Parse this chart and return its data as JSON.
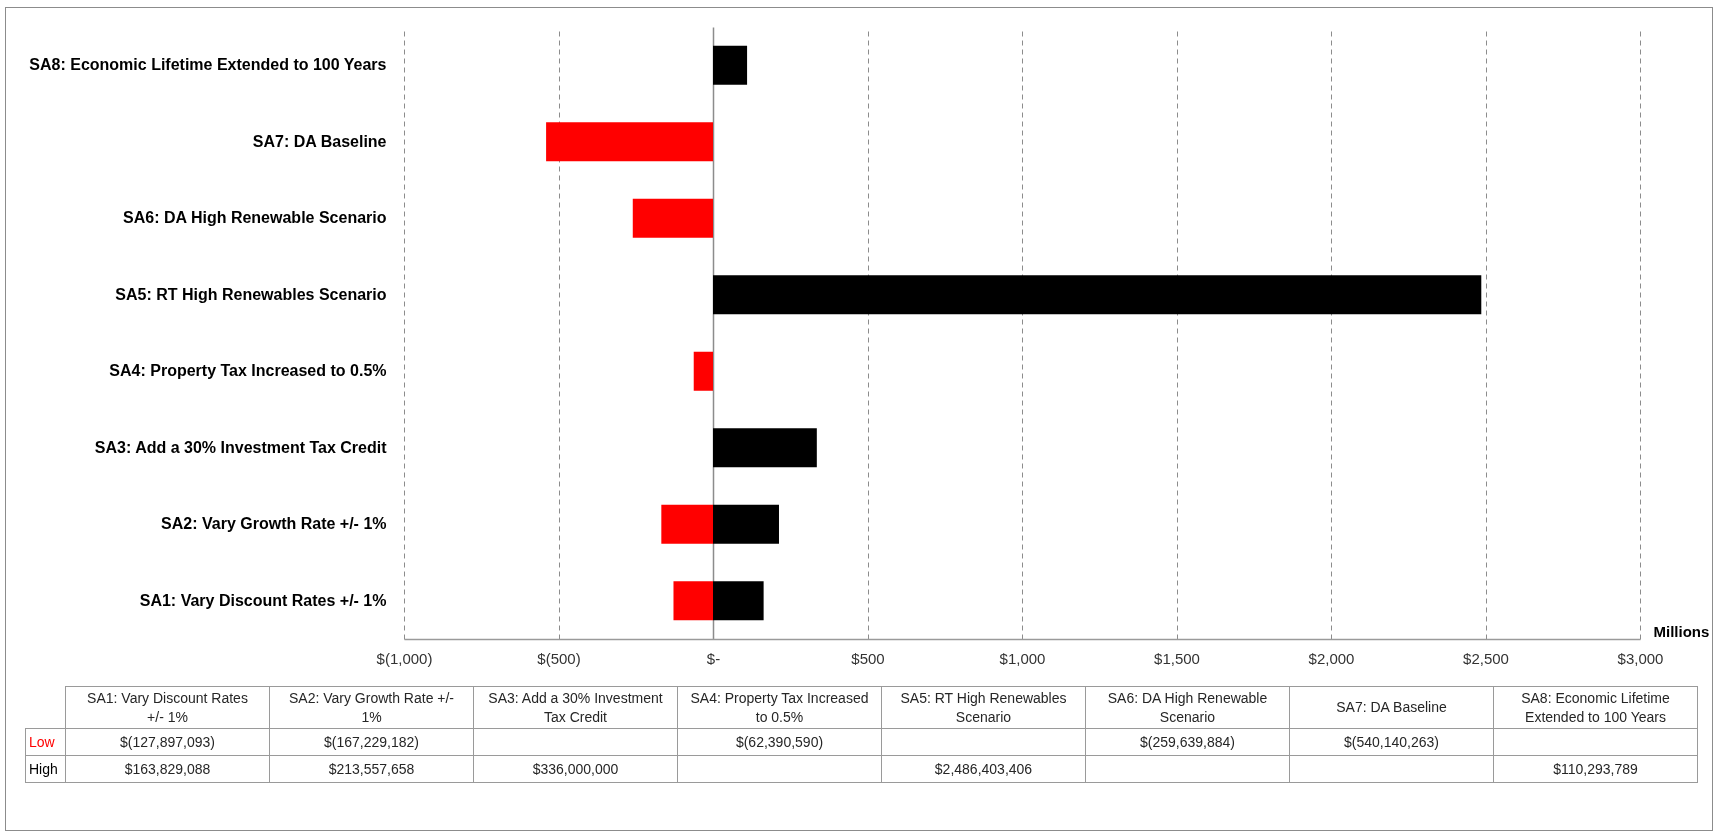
{
  "chart_data": {
    "type": "bar",
    "orientation": "horizontal",
    "categories": [
      "SA8: Economic Lifetime Extended to 100 Years",
      "SA7: DA Baseline",
      "SA6: DA High Renewable Scenario",
      "SA5: RT High Renewables Scenario",
      "SA4: Property Tax Increased to 0.5%",
      "SA3: Add a 30% Investment Tax Credit",
      "SA2: Vary Growth Rate +/- 1%",
      "SA1: Vary Discount Rates +/- 1%"
    ],
    "series": [
      {
        "name": "Low",
        "color": "#ff0000",
        "values": [
          null,
          -540.140263,
          -259.639884,
          null,
          -62.39059,
          null,
          -167.229182,
          -127.897093
        ]
      },
      {
        "name": "High",
        "color": "#000000",
        "values": [
          110.293789,
          null,
          null,
          2486.403406,
          null,
          336,
          213.557658,
          163.829088
        ]
      }
    ],
    "annotations": [
      "$(127,897,093)",
      "$(167,229,182)",
      "$(62,390,590)",
      "$(259,639,884)",
      "$(540,140,263)",
      "$163,829,088",
      "$213,557,658",
      "$336,000,000",
      "$2,486,403,406",
      "$110,293,789"
    ],
    "xlabel": "Millions",
    "xlim": [
      -1000,
      3000
    ],
    "xticks": [
      {
        "value": -1000,
        "label": "$(1,000)"
      },
      {
        "value": -500,
        "label": "$(500)"
      },
      {
        "value": 0,
        "label": "$-"
      },
      {
        "value": 500,
        "label": "$500"
      },
      {
        "value": 1000,
        "label": "$1,000"
      },
      {
        "value": 1500,
        "label": "$1,500"
      },
      {
        "value": 2000,
        "label": "$2,000"
      },
      {
        "value": 2500,
        "label": "$2,500"
      },
      {
        "value": 3000,
        "label": "$3,000"
      }
    ],
    "grid": "x",
    "legend": false
  }
}
